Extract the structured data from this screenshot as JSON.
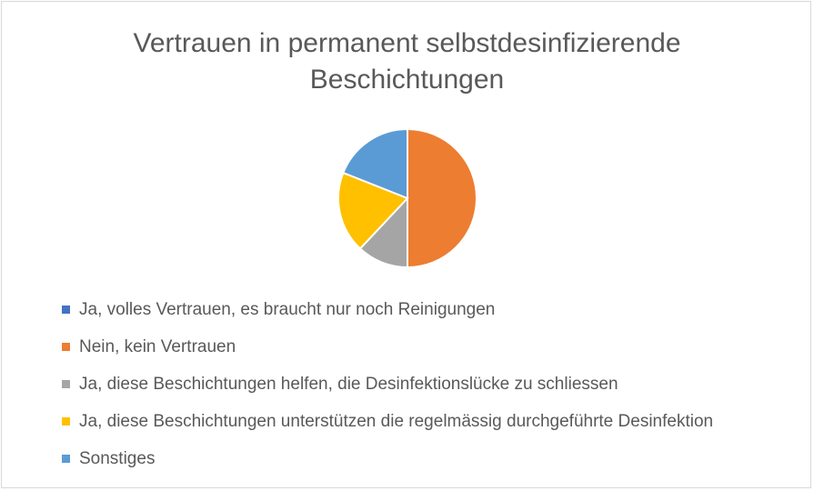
{
  "chart_data": {
    "type": "pie",
    "title": [
      "Vertrauen in permanent selbstdesinfizierende",
      "Beschichtungen"
    ],
    "categories": [
      "Ja, volles Vertrauen, es braucht nur noch Reinigungen",
      "Nein, kein Vertrauen",
      "Ja, diese Beschichtungen helfen, die Desinfektionslücke zu schliessen",
      "Ja, diese Beschichtungen unterstützen die regelmässig durchgeführte Desinfektion",
      "Sonstiges"
    ],
    "values": [
      0,
      50,
      12,
      19,
      19
    ],
    "colors": [
      "#4472c4",
      "#ed7d31",
      "#a5a5a5",
      "#ffc000",
      "#5b9bd5"
    ],
    "legend_position": "bottom-left",
    "start_angle_deg": 0,
    "direction": "clockwise"
  }
}
